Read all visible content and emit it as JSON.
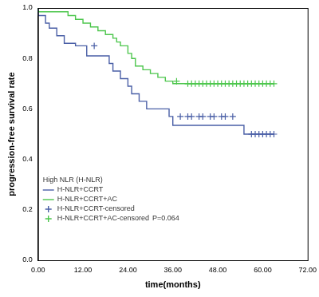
{
  "chart_data": {
    "type": "line",
    "x_label": "time(months)",
    "y_label": "progression-free survival rate",
    "legend_title": "High NLR (H-NLR)",
    "legend": "lower left",
    "grid": false,
    "xlim": [
      0,
      72
    ],
    "xticks": [
      {
        "value": 0,
        "label": "0.00"
      },
      {
        "value": 12,
        "label": "12.00"
      },
      {
        "value": 24,
        "label": "24.00"
      },
      {
        "value": 36,
        "label": "36.00"
      },
      {
        "value": 48,
        "label": "48.00"
      },
      {
        "value": 60,
        "label": "60.00"
      },
      {
        "value": 72,
        "label": "72.00"
      }
    ],
    "ylim": [
      0,
      1
    ],
    "yticks": [
      {
        "value": 0,
        "label": "0.0"
      },
      0.2,
      0.4,
      0.6,
      0.8,
      {
        "value": 1,
        "label": "1.0"
      }
    ],
    "annotations": [
      {
        "text": "P=0.064"
      }
    ],
    "series": [
      {
        "name": "H-NLR+CCRT",
        "color": "#4a5fa6",
        "type": "line",
        "line_style": "step",
        "x": [
          0,
          2,
          3,
          5,
          7,
          10,
          13,
          19,
          20,
          22,
          24,
          25,
          27,
          29,
          35,
          36,
          55,
          56,
          63
        ],
        "values": [
          1.0,
          0.97,
          0.94,
          0.92,
          0.89,
          0.86,
          0.85,
          0.81,
          0.78,
          0.75,
          0.72,
          0.69,
          0.66,
          0.63,
          0.6,
          0.57,
          0.535,
          0.5,
          0.5
        ]
      },
      {
        "name": "H-NLR+CCRT+AC",
        "color": "#4cc64c",
        "type": "line",
        "line_style": "step",
        "x": [
          0,
          8,
          10,
          12,
          14,
          16,
          18,
          20,
          21,
          22,
          24,
          25,
          26,
          28,
          30,
          32,
          34,
          36,
          39,
          63
        ],
        "values": [
          1.0,
          0.985,
          0.97,
          0.955,
          0.94,
          0.925,
          0.91,
          0.895,
          0.88,
          0.865,
          0.85,
          0.82,
          0.8,
          0.77,
          0.755,
          0.74,
          0.725,
          0.71,
          0.7,
          0.7
        ]
      },
      {
        "name": "H-NLR+CCRT-censored",
        "color": "#4a5fa6",
        "type": "scatter",
        "marker": "cross",
        "x": [
          15,
          38,
          40,
          41,
          43,
          44,
          46,
          47,
          49,
          50,
          52,
          57,
          58,
          59,
          60,
          61,
          62,
          63
        ],
        "values": [
          0.85,
          0.57,
          0.57,
          0.57,
          0.57,
          0.57,
          0.57,
          0.57,
          0.57,
          0.57,
          0.57,
          0.5,
          0.5,
          0.5,
          0.5,
          0.5,
          0.5,
          0.5
        ]
      },
      {
        "name": "H-NLR+CCRT+AC-censored",
        "color": "#4cc64c",
        "type": "scatter",
        "marker": "cross",
        "x": [
          37,
          40,
          41,
          42,
          43,
          44,
          45,
          46,
          47,
          48,
          49,
          50,
          51,
          52,
          53,
          54,
          55,
          56,
          57,
          58,
          59,
          60,
          61,
          62,
          63
        ],
        "values": [
          0.71,
          0.7,
          0.7,
          0.7,
          0.7,
          0.7,
          0.7,
          0.7,
          0.7,
          0.7,
          0.7,
          0.7,
          0.7,
          0.7,
          0.7,
          0.7,
          0.7,
          0.7,
          0.7,
          0.7,
          0.7,
          0.7,
          0.7,
          0.7,
          0.7
        ]
      }
    ]
  }
}
